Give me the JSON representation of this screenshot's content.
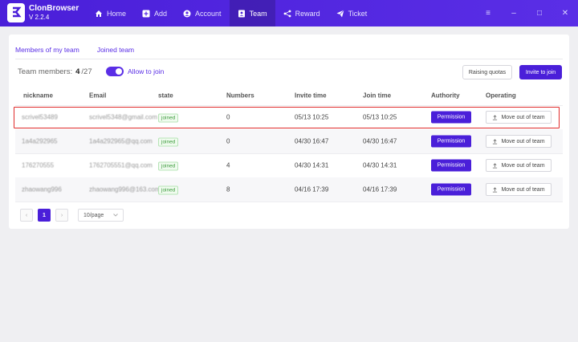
{
  "app": {
    "name": "ClonBrowser",
    "version": "V 2.2.4"
  },
  "nav": [
    {
      "label": "Home",
      "icon": "home-icon"
    },
    {
      "label": "Add",
      "icon": "plus-square-icon"
    },
    {
      "label": "Account",
      "icon": "user-circle-icon"
    },
    {
      "label": "Team",
      "icon": "team-icon",
      "active": true
    },
    {
      "label": "Reward",
      "icon": "share-icon"
    },
    {
      "label": "Ticket",
      "icon": "paper-plane-icon"
    }
  ],
  "window_controls": {
    "menu": "≡",
    "minimize": "–",
    "maximize": "□",
    "close": "✕"
  },
  "tabs": [
    {
      "label": "Members of my team",
      "active": true
    },
    {
      "label": "Joined team"
    }
  ],
  "team": {
    "members_label": "Team members:",
    "count": "4",
    "separator": " / ",
    "limit": "27",
    "allow_join_label": "Allow to join",
    "allow_join_on": true
  },
  "buttons": {
    "raising_quotas": "Raising quotas",
    "invite": "Invite to join"
  },
  "table": {
    "headers": [
      "nickname",
      "Email",
      "state",
      "Numbers",
      "Invite time",
      "Join time",
      "Authority",
      "Operating"
    ],
    "rows": [
      {
        "nickname": "scrivel53489",
        "email": "scrivel5348@gmail.com",
        "state": "joined",
        "numbers": "0",
        "invite_time": "05/13 10:25",
        "join_time": "05/13 10:25",
        "authority": "Permission",
        "operating": "Move out of team"
      },
      {
        "nickname": "1a4a292965",
        "email": "1a4a292965@qq.com",
        "state": "joined",
        "numbers": "0",
        "invite_time": "04/30 16:47",
        "join_time": "04/30 16:47",
        "authority": "Permission",
        "operating": "Move out of team"
      },
      {
        "nickname": "176270555",
        "email": "1762705551@qq.com",
        "state": "joined",
        "numbers": "4",
        "invite_time": "04/30 14:31",
        "join_time": "04/30 14:31",
        "authority": "Permission",
        "operating": "Move out of team"
      },
      {
        "nickname": "zhaowang996",
        "email": "zhaowang996@163.com",
        "state": "joined",
        "numbers": "8",
        "invite_time": "04/16 17:39",
        "join_time": "04/16 17:39",
        "authority": "Permission",
        "operating": "Move out of team"
      }
    ]
  },
  "pagination": {
    "prev": "‹",
    "current": "1",
    "next": "›",
    "page_size": "10/page"
  },
  "colors": {
    "accent": "#4a1fd9",
    "highlight": "#e02b2b",
    "joined": "#3c9b3c"
  }
}
